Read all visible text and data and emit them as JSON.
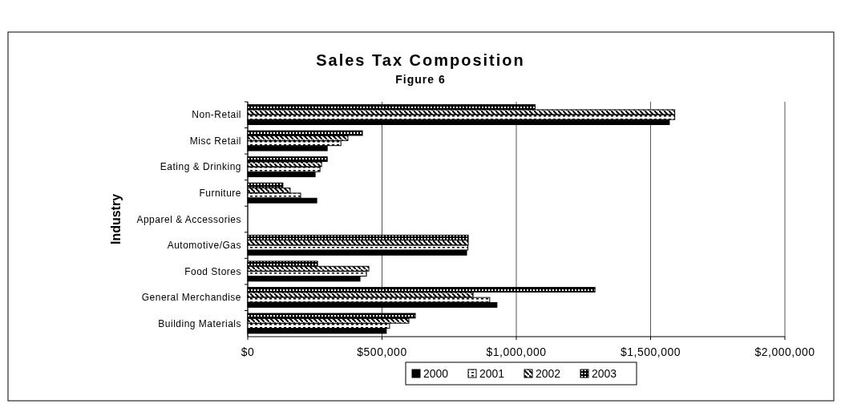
{
  "chart_data": {
    "type": "bar",
    "orientation": "horizontal",
    "title": "Sales Tax Composition",
    "subtitle": "Figure 6",
    "ylabel": "Industry",
    "categories": [
      "Non-Retail",
      "Misc Retail",
      "Eating & Drinking",
      "Furniture",
      "Apparel & Accessories",
      "Automotive/Gas",
      "Food Stores",
      "General Merchandise",
      "Building Materials"
    ],
    "series": [
      {
        "name": "2000",
        "color": "#000000",
        "values": [
          1570000,
          296000,
          251000,
          257000,
          null,
          815000,
          418000,
          928000,
          516000
        ]
      },
      {
        "name": "2001",
        "color": "#000000",
        "values": [
          1590000,
          347000,
          269000,
          197000,
          null,
          820000,
          442000,
          901000,
          528000
        ]
      },
      {
        "name": "2002",
        "color": "#000000",
        "values": [
          1590000,
          373000,
          275000,
          158000,
          null,
          821000,
          451000,
          839000,
          600000
        ]
      },
      {
        "name": "2003",
        "color": "#000000",
        "values": [
          1070000,
          427000,
          296000,
          131000,
          null,
          821000,
          260000,
          1293000,
          624000
        ]
      }
    ],
    "xlim": [
      0,
      2000000
    ],
    "xticks": [
      {
        "value": 0,
        "label": "$0"
      },
      {
        "value": 500000,
        "label": "$500,000"
      },
      {
        "value": 1000000,
        "label": "$1,000,000"
      },
      {
        "value": 1500000,
        "label": "$1,500,000"
      },
      {
        "value": 2000000,
        "label": "$2,000,000"
      }
    ],
    "grid": "x",
    "legend": "bottom"
  }
}
